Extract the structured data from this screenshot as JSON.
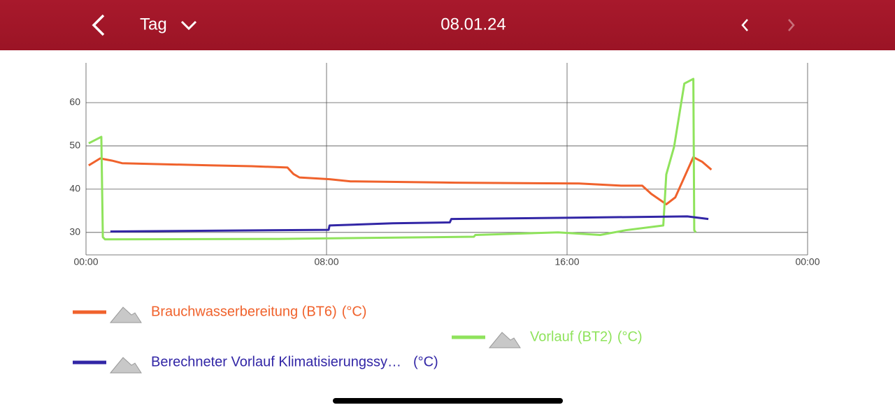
{
  "header": {
    "period": "Tag",
    "date": "08.01.24"
  },
  "chart_data": {
    "type": "line",
    "xlim": [
      0,
      24
    ],
    "xticks": [
      {
        "value": 0,
        "label": "00:00"
      },
      {
        "value": 8,
        "label": "08:00"
      },
      {
        "value": 16,
        "label": "16:00"
      },
      {
        "value": 24,
        "label": "00:00"
      }
    ],
    "ylim": [
      24.8,
      69.2
    ],
    "yticks": [
      30,
      40,
      50,
      60
    ],
    "grid": true,
    "series": [
      {
        "name": "Brauchwasserbereitung (BT6)",
        "unit": "(°C)",
        "color": "#f0622c",
        "x": [
          0.09,
          0.47,
          0.86,
          1.2,
          4.1,
          5.5,
          6.7,
          6.9,
          7.1,
          8.1,
          8.8,
          12.3,
          16.4,
          17.8,
          18.5,
          18.8,
          19.3,
          19.6,
          20.2,
          20.5,
          20.8
        ],
        "values": [
          45.5,
          47.1,
          46.6,
          46,
          45.5,
          45.3,
          45,
          43.5,
          42.7,
          42.3,
          41.8,
          41.5,
          41.3,
          40.8,
          40.8,
          38.9,
          36.5,
          38.1,
          47.4,
          46.3,
          44.5
        ]
      },
      {
        "name": "Vorlauf (BT2)",
        "unit": "(°C)",
        "color": "#8fe35c",
        "x": [
          0.09,
          0.51,
          0.56,
          0.63,
          6.4,
          12.9,
          12.95,
          15.7,
          17.1,
          17.95,
          19.2,
          19.3,
          19.56,
          19.9,
          20.2,
          20.23,
          20.28
        ],
        "values": [
          50.6,
          52.1,
          28.9,
          28.4,
          28.5,
          29,
          29.4,
          30,
          29.4,
          30.5,
          31.6,
          43.4,
          49.8,
          64.4,
          65.5,
          30.5,
          30
        ]
      },
      {
        "name": "Berechneter Vorlauf Klimatisierungssy…",
        "unit": "(°C)",
        "color": "#3226a6",
        "x": [
          0.81,
          8.07,
          8.1,
          10.2,
          12.1,
          12.15,
          16.2,
          20.0,
          20.7
        ],
        "values": [
          30.2,
          30.6,
          31.6,
          32.1,
          32.3,
          33.1,
          33.4,
          33.7,
          33.1
        ]
      }
    ]
  }
}
